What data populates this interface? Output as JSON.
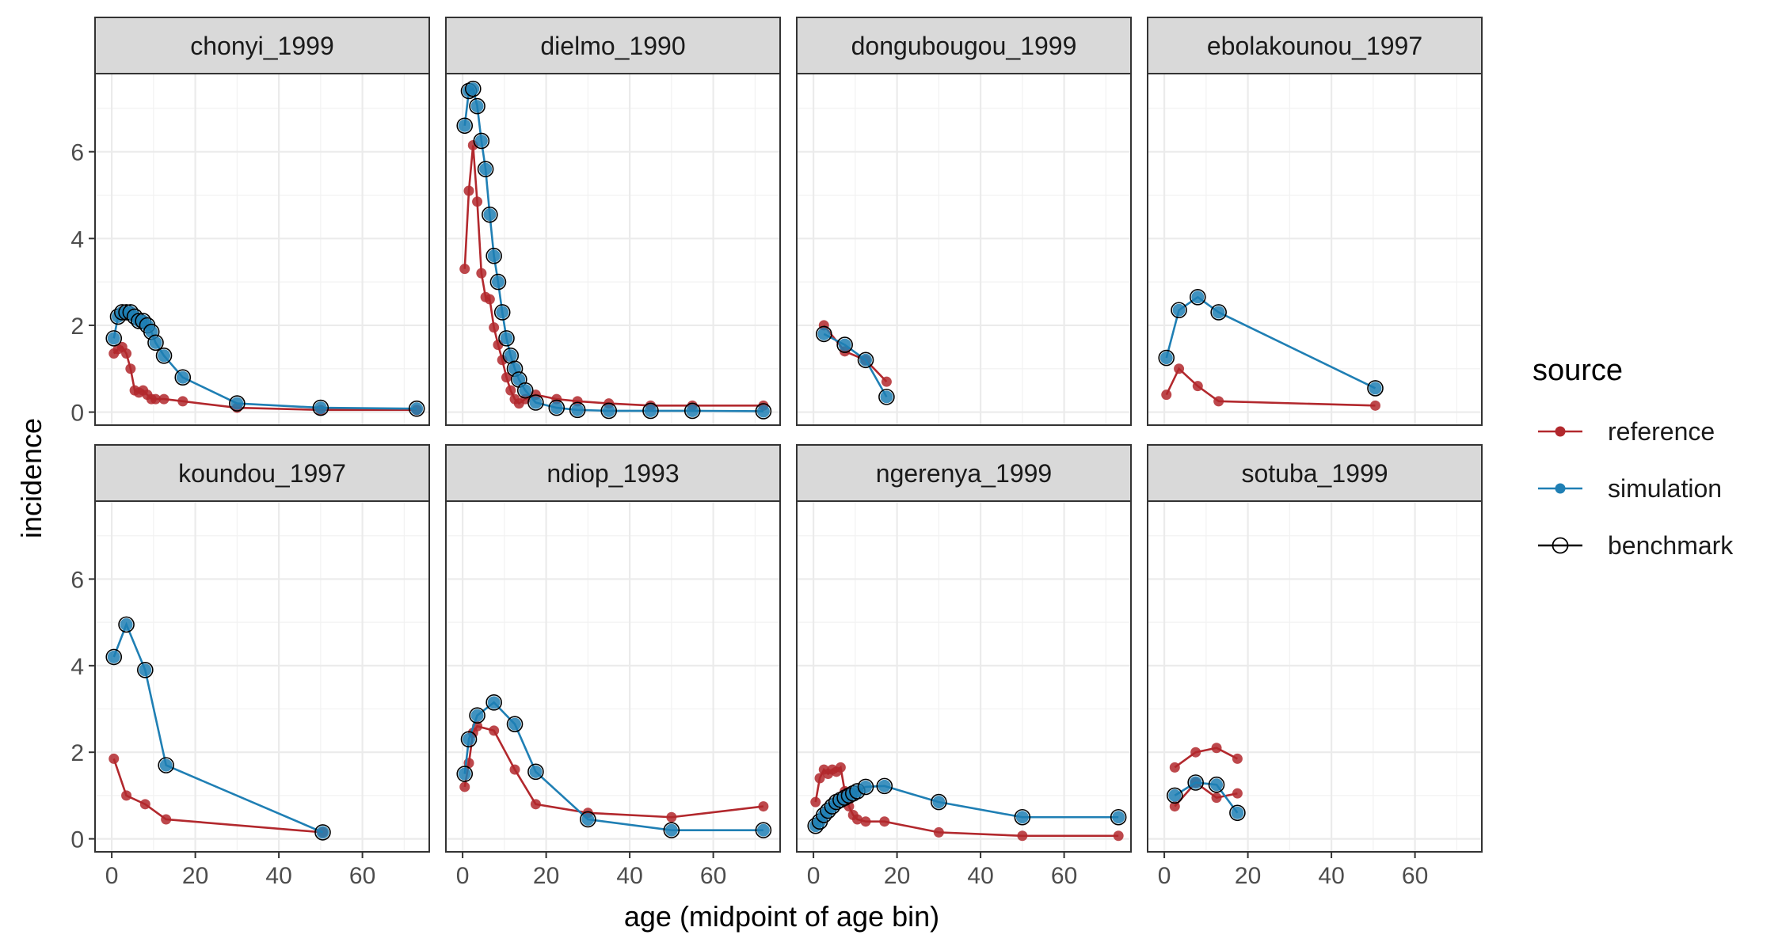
{
  "chart_data": {
    "type": "line",
    "xlabel": "age (midpoint of age bin)",
    "ylabel": "incidence",
    "xlim": [
      -4,
      76
    ],
    "ylim": [
      -0.3,
      7.8
    ],
    "x_ticks": [
      0,
      20,
      40,
      60
    ],
    "y_ticks": [
      0,
      2,
      4,
      6
    ],
    "grid": true,
    "legend": {
      "title": "source",
      "position": "right",
      "entries": [
        {
          "label": "reference",
          "color": "#b2282d",
          "marker": "filled-circle"
        },
        {
          "label": "simulation",
          "color": "#1f7fb4",
          "marker": "filled-circle"
        },
        {
          "label": "benchmark",
          "color": "#000000",
          "marker": "open-circle"
        }
      ]
    },
    "panels": [
      {
        "title": "chonyi_1999",
        "reference": [
          [
            0.5,
            1.35
          ],
          [
            1.5,
            1.45
          ],
          [
            2.5,
            1.5
          ],
          [
            3.5,
            1.35
          ],
          [
            4.5,
            1.0
          ],
          [
            5.5,
            0.5
          ],
          [
            6.5,
            0.45
          ],
          [
            7.5,
            0.5
          ],
          [
            8.5,
            0.4
          ],
          [
            9.5,
            0.3
          ],
          [
            10.5,
            0.3
          ],
          [
            12.5,
            0.3
          ],
          [
            17,
            0.25
          ],
          [
            30,
            0.1
          ],
          [
            50,
            0.05
          ],
          [
            73,
            0.05
          ]
        ],
        "simulation": [
          [
            0.5,
            1.7
          ],
          [
            1.5,
            2.2
          ],
          [
            2.5,
            2.3
          ],
          [
            3.5,
            2.3
          ],
          [
            4.5,
            2.3
          ],
          [
            5.5,
            2.2
          ],
          [
            6.5,
            2.1
          ],
          [
            7.5,
            2.1
          ],
          [
            8.5,
            2.0
          ],
          [
            9.5,
            1.85
          ],
          [
            10.5,
            1.6
          ],
          [
            12.5,
            1.3
          ],
          [
            17,
            0.8
          ],
          [
            30,
            0.2
          ],
          [
            50,
            0.1
          ],
          [
            73,
            0.08
          ]
        ]
      },
      {
        "title": "dielmo_1990",
        "reference": [
          [
            0.5,
            3.3
          ],
          [
            1.5,
            5.1
          ],
          [
            2.5,
            6.15
          ],
          [
            3.5,
            4.85
          ],
          [
            4.5,
            3.2
          ],
          [
            5.5,
            2.65
          ],
          [
            6.5,
            2.6
          ],
          [
            7.5,
            1.95
          ],
          [
            8.5,
            1.55
          ],
          [
            9.5,
            1.2
          ],
          [
            10.5,
            0.8
          ],
          [
            11.5,
            0.5
          ],
          [
            12.5,
            0.3
          ],
          [
            13.5,
            0.2
          ],
          [
            15,
            0.3
          ],
          [
            17.5,
            0.4
          ],
          [
            22.5,
            0.3
          ],
          [
            27.5,
            0.25
          ],
          [
            35,
            0.2
          ],
          [
            45,
            0.15
          ],
          [
            55,
            0.15
          ],
          [
            72,
            0.15
          ]
        ],
        "simulation": [
          [
            0.5,
            6.6
          ],
          [
            1.5,
            7.4
          ],
          [
            2.5,
            7.45
          ],
          [
            3.5,
            7.05
          ],
          [
            4.5,
            6.25
          ],
          [
            5.5,
            5.6
          ],
          [
            6.5,
            4.55
          ],
          [
            7.5,
            3.6
          ],
          [
            8.5,
            3.0
          ],
          [
            9.5,
            2.3
          ],
          [
            10.5,
            1.7
          ],
          [
            11.5,
            1.3
          ],
          [
            12.5,
            1.0
          ],
          [
            13.5,
            0.75
          ],
          [
            15,
            0.5
          ],
          [
            17.5,
            0.22
          ],
          [
            22.5,
            0.1
          ],
          [
            27.5,
            0.05
          ],
          [
            35,
            0.03
          ],
          [
            45,
            0.03
          ],
          [
            55,
            0.03
          ],
          [
            72,
            0.02
          ]
        ]
      },
      {
        "title": "dongubougou_1999",
        "reference": [
          [
            2.5,
            2.0
          ],
          [
            7.5,
            1.4
          ],
          [
            12.5,
            1.2
          ],
          [
            17.5,
            0.7
          ]
        ],
        "simulation": [
          [
            2.5,
            1.8
          ],
          [
            7.5,
            1.55
          ],
          [
            12.5,
            1.2
          ],
          [
            17.5,
            0.35
          ]
        ]
      },
      {
        "title": "ebolakounou_1997",
        "reference": [
          [
            0.5,
            0.4
          ],
          [
            3.5,
            1.0
          ],
          [
            8,
            0.6
          ],
          [
            13,
            0.25
          ],
          [
            50.5,
            0.15
          ]
        ],
        "simulation": [
          [
            0.5,
            1.25
          ],
          [
            3.5,
            2.35
          ],
          [
            8,
            2.65
          ],
          [
            13,
            2.3
          ],
          [
            50.5,
            0.55
          ]
        ]
      },
      {
        "title": "koundou_1997",
        "reference": [
          [
            0.5,
            1.85
          ],
          [
            3.5,
            1.0
          ],
          [
            8,
            0.8
          ],
          [
            13,
            0.45
          ],
          [
            50.5,
            0.15
          ]
        ],
        "simulation": [
          [
            0.5,
            4.2
          ],
          [
            3.5,
            4.95
          ],
          [
            8,
            3.9
          ],
          [
            13,
            1.7
          ],
          [
            50.5,
            0.15
          ]
        ]
      },
      {
        "title": "ndiop_1993",
        "reference": [
          [
            0.5,
            1.2
          ],
          [
            1.5,
            1.75
          ],
          [
            2.5,
            2.45
          ],
          [
            3.5,
            2.6
          ],
          [
            7.5,
            2.5
          ],
          [
            12.5,
            1.6
          ],
          [
            17.5,
            0.8
          ],
          [
            30,
            0.6
          ],
          [
            50,
            0.5
          ],
          [
            72,
            0.75
          ]
        ],
        "simulation": [
          [
            0.5,
            1.5
          ],
          [
            1.5,
            2.3
          ],
          [
            3.5,
            2.85
          ],
          [
            7.5,
            3.15
          ],
          [
            12.5,
            2.65
          ],
          [
            17.5,
            1.55
          ],
          [
            30,
            0.45
          ],
          [
            50,
            0.2
          ],
          [
            72,
            0.2
          ]
        ]
      },
      {
        "title": "ngerenya_1999",
        "reference": [
          [
            0.5,
            0.85
          ],
          [
            1.5,
            1.4
          ],
          [
            2.5,
            1.6
          ],
          [
            3.5,
            1.5
          ],
          [
            4.5,
            1.6
          ],
          [
            5.5,
            1.55
          ],
          [
            6.5,
            1.65
          ],
          [
            7.5,
            1.1
          ],
          [
            8.5,
            0.75
          ],
          [
            9.5,
            0.55
          ],
          [
            10.5,
            0.45
          ],
          [
            12.5,
            0.4
          ],
          [
            17,
            0.4
          ],
          [
            30,
            0.15
          ],
          [
            50,
            0.07
          ],
          [
            73,
            0.07
          ]
        ],
        "simulation": [
          [
            0.5,
            0.3
          ],
          [
            1.5,
            0.4
          ],
          [
            2.5,
            0.55
          ],
          [
            3.5,
            0.65
          ],
          [
            4.5,
            0.75
          ],
          [
            5.5,
            0.85
          ],
          [
            6.5,
            0.9
          ],
          [
            7.5,
            0.95
          ],
          [
            8.5,
            1.0
          ],
          [
            9.5,
            1.05
          ],
          [
            10.5,
            1.1
          ],
          [
            12.5,
            1.2
          ],
          [
            17,
            1.22
          ],
          [
            30,
            0.85
          ],
          [
            50,
            0.5
          ],
          [
            73,
            0.5
          ]
        ]
      },
      {
        "title": "sotuba_1999",
        "reference": [
          [
            2.5,
            0.75
          ],
          [
            7.5,
            1.3
          ],
          [
            12.5,
            0.95
          ],
          [
            17.5,
            1.05
          ]
        ],
        "reference2": [
          [
            2.5,
            1.65
          ],
          [
            7.5,
            2.0
          ],
          [
            12.5,
            2.1
          ],
          [
            17.5,
            1.85
          ]
        ],
        "simulation": [
          [
            2.5,
            1.0
          ],
          [
            7.5,
            1.3
          ],
          [
            12.5,
            1.25
          ],
          [
            17.5,
            0.6
          ]
        ]
      }
    ]
  }
}
